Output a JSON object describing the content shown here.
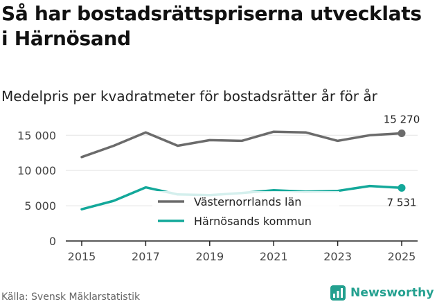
{
  "title": "Så har bostadsrättspriserna utvecklats i Härnösand",
  "subtitle": "Medelpris per kvadratmeter för bostadsrätter år för år",
  "source": "Källa: Svensk Mäklarstatistik",
  "brand": "Newsworthy",
  "colors": {
    "lan": "#6b6b6b",
    "kommun": "#13a89a",
    "grid": "#e3e3e3",
    "brand": "#23a08f"
  },
  "chart_data": {
    "type": "line",
    "title": "Medelpris per kvadratmeter för bostadsrätter år för år",
    "xlabel": "",
    "ylabel": "",
    "x": [
      2015,
      2016,
      2017,
      2018,
      2019,
      2020,
      2021,
      2022,
      2023,
      2024,
      2025
    ],
    "x_ticks": [
      "2015",
      "2017",
      "2019",
      "2021",
      "2023",
      "2025"
    ],
    "y_ticks": [
      0,
      5000,
      10000,
      15000
    ],
    "y_tick_labels": [
      "0",
      "5 000",
      "10 000",
      "15 000"
    ],
    "ylim": [
      0,
      16500
    ],
    "grid": true,
    "legend_position": "center",
    "series": [
      {
        "name": "Västernorrlands län",
        "values": [
          11900,
          13500,
          15400,
          13500,
          14300,
          14200,
          15500,
          15400,
          14200,
          15000,
          15270
        ],
        "end_label": "15 270"
      },
      {
        "name": "Härnösands kommun",
        "values": [
          4500,
          5700,
          7600,
          6600,
          6500,
          6800,
          7200,
          7000,
          7100,
          7800,
          7531
        ],
        "end_label": "7 531"
      }
    ]
  }
}
